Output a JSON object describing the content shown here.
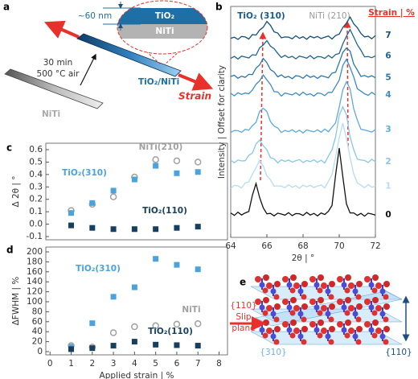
{
  "panel_labels": [
    "a",
    "b",
    "c",
    "d",
    "e"
  ],
  "panel_a": {
    "thickness": "~60 nm",
    "top_layer": "TiO₂",
    "bottom_layer": "NiTi",
    "anneal_time": "30 min",
    "anneal_condition": "500 °C air",
    "substrate_label": "NiTi",
    "sample_label": "TiO₂/NiTi",
    "strain_label": "Strain"
  },
  "panel_e": {
    "slip_plane_index": "{110}",
    "slip_label": "Slip",
    "plane_label": "plane",
    "plane_310": "{310}",
    "plane_110": "{110}"
  },
  "chart_data": [
    {
      "type": "line",
      "xlabel": "2θ | °",
      "ylabel": "Intensity | Offset for clarity",
      "legend_title": "Strain | %",
      "annotations": [
        "TiO₂ (310)",
        "NiTi (210)"
      ],
      "xlim": [
        64,
        72
      ],
      "xticks": [
        64,
        66,
        68,
        70,
        72
      ],
      "ylim": [
        0,
        10
      ],
      "x": [
        64,
        64.2,
        64.4,
        64.6,
        64.8,
        65,
        65.2,
        65.4,
        65.6,
        65.8,
        66,
        66.2,
        66.4,
        66.6,
        66.8,
        67,
        67.2,
        67.4,
        67.6,
        67.8,
        68,
        68.2,
        68.4,
        68.6,
        68.8,
        69,
        69.2,
        69.4,
        69.6,
        69.8,
        70,
        70.2,
        70.4,
        70.6,
        70.8,
        71,
        71.2,
        71.4,
        71.6,
        71.8,
        72
      ],
      "series": [
        {
          "name": "0",
          "color": "#111111",
          "values": [
            1.06,
            0.95,
            1.09,
            0.97,
            1.06,
            1.12,
            1.83,
            2.33,
            1.72,
            1.28,
            1.02,
            1.04,
            0.93,
            1.05,
            1.01,
            0.96,
            1.07,
            0.94,
            1.03,
            1.02,
            0.95,
            1.08,
            0.97,
            1.04,
            0.93,
            1.06,
            0.99,
            1.13,
            1.38,
            2.7,
            3.87,
            2.62,
            1.45,
            1.06,
            1.06,
            0.95,
            1.04,
            0.92,
            1.05,
            1.01,
            0.97
          ]
        },
        {
          "name": "1",
          "color": "#b5dcf3",
          "values": [
            2.12,
            2.25,
            2.23,
            2.14,
            2.36,
            2.4,
            2.74,
            3.01,
            3.35,
            3.09,
            2.66,
            2.49,
            2.22,
            2.23,
            2.22,
            2.15,
            2.28,
            2.17,
            2.24,
            2.13,
            2.26,
            2.19,
            2.25,
            2.16,
            2.22,
            2.27,
            2.14,
            2.42,
            2.72,
            3.48,
            4.31,
            4.94,
            4.28,
            3.47,
            2.75,
            2.36,
            2.26,
            2.15,
            2.29,
            2.17,
            2.22
          ]
        },
        {
          "name": "2",
          "color": "#86c6ea",
          "values": [
            3.34,
            3.23,
            3.35,
            3.31,
            3.32,
            3.55,
            3.65,
            4.05,
            4.22,
            3.97,
            3.79,
            3.45,
            3.4,
            3.23,
            3.36,
            3.29,
            3.35,
            3.26,
            3.32,
            3.37,
            3.24,
            3.33,
            3.28,
            3.36,
            3.25,
            3.34,
            3.22,
            3.52,
            3.79,
            4.35,
            5.28,
            5.65,
            5.31,
            4.35,
            3.8,
            3.39,
            3.35,
            3.33,
            3.24,
            3.38,
            3.28
          ]
        },
        {
          "name": "3",
          "color": "#5eaad8",
          "values": [
            4.54,
            4.63,
            4.62,
            4.55,
            4.68,
            4.64,
            4.84,
            4.98,
            5.46,
            5.59,
            5.45,
            5.01,
            4.82,
            4.74,
            4.54,
            4.63,
            4.58,
            4.66,
            4.55,
            4.64,
            4.52,
            4.65,
            4.61,
            4.57,
            4.66,
            4.55,
            4.69,
            4.57,
            4.77,
            4.96,
            5.64,
            6.39,
            6.74,
            6.44,
            5.57,
            5.08,
            4.68,
            4.65,
            4.61,
            4.56,
            4.67
          ]
        },
        {
          "name": "4",
          "color": "#3d8cc2",
          "values": [
            6.24,
            6.13,
            6.26,
            6.19,
            6.25,
            6.22,
            6.38,
            6.63,
            6.78,
            7.03,
            6.82,
            6.62,
            6.31,
            6.3,
            6.12,
            6.25,
            6.21,
            6.17,
            6.26,
            6.15,
            6.29,
            6.17,
            6.22,
            6.12,
            6.25,
            6.23,
            6.14,
            6.28,
            6.28,
            6.54,
            6.81,
            7.45,
            7.71,
            7.36,
            6.95,
            6.44,
            6.33,
            6.22,
            6.15,
            6.28,
            6.17
          ]
        },
        {
          "name": "5",
          "color": "#2a76aa",
          "values": [
            6.97,
            7.02,
            6.89,
            6.98,
            6.93,
            7.06,
            7.05,
            7.33,
            7.47,
            7.75,
            7.56,
            7.26,
            7.16,
            6.95,
            7.04,
            6.92,
            6.97,
            6.87,
            7,
            6.98,
            6.89,
            7.03,
            6.93,
            6.99,
            6.88,
            7,
            6.96,
            6.91,
            7.11,
            7.15,
            7.57,
            8.01,
            8.2,
            8.07,
            7.51,
            7.25,
            6.97,
            7.01,
            6.94,
            7,
            6.91
          ]
        },
        {
          "name": "6",
          "color": "#1d6393",
          "values": [
            7.75,
            7.84,
            7.72,
            7.85,
            7.81,
            7.77,
            7.91,
            7.89,
            8.21,
            8.33,
            8.52,
            8.28,
            8.17,
            7.97,
            7.79,
            7.88,
            7.78,
            7.84,
            7.73,
            7.85,
            7.81,
            7.76,
            7.87,
            7.74,
            7.83,
            7.82,
            7.75,
            7.88,
            7.77,
            7.92,
            7.96,
            8.38,
            8.71,
            9,
            8.68,
            8.34,
            8.1,
            7.82,
            7.83,
            7.78,
            7.86
          ]
        },
        {
          "name": "7",
          "color": "#124e78",
          "values": [
            8.62,
            8.67,
            8.57,
            8.7,
            8.68,
            8.59,
            8.78,
            8.76,
            8.98,
            9.1,
            9.35,
            9.18,
            8.9,
            8.85,
            8.64,
            8.68,
            8.67,
            8.6,
            8.73,
            8.62,
            8.69,
            8.58,
            8.71,
            8.64,
            8.7,
            8.61,
            8.67,
            8.72,
            8.59,
            8.74,
            8.8,
            9.09,
            9.28,
            9.54,
            9.25,
            9.08,
            8.83,
            8.68,
            8.71,
            8.6,
            8.74
          ]
        }
      ]
    },
    {
      "type": "scatter",
      "ylabel": "Δ 2θ | °",
      "xlim": [
        -0.2,
        8.4
      ],
      "ylim": [
        -0.1,
        0.6
      ],
      "yticks": [
        -0.1,
        {
          "value": 0,
          "label": "0.0"
        },
        0.1,
        0.2,
        0.3,
        0.4,
        0.5,
        0.6
      ],
      "x": [
        1,
        2,
        3,
        4,
        5,
        6,
        7
      ],
      "series": [
        {
          "name": "NiTi(210)",
          "color": "#a0a0a0",
          "marker": "circle-open",
          "values": [
            0.11,
            0.16,
            0.22,
            0.38,
            0.52,
            0.51,
            0.5
          ]
        },
        {
          "name": "TiO₂(310)",
          "color": "#4aa3dd",
          "marker": "square",
          "values": [
            0.09,
            0.17,
            0.27,
            0.36,
            0.47,
            0.41,
            0.42
          ]
        },
        {
          "name": "TiO₂(110)",
          "color": "#173f5f",
          "marker": "square",
          "values": [
            -0.01,
            -0.03,
            -0.04,
            -0.04,
            -0.04,
            -0.03,
            -0.02
          ]
        }
      ]
    },
    {
      "type": "scatter",
      "xlabel": "Applied strain | %",
      "ylabel": "ΔFWHM | %",
      "xlim": [
        -0.2,
        8.4
      ],
      "ylim": [
        0,
        200
      ],
      "xticks": [
        0,
        1,
        2,
        3,
        4,
        5,
        6,
        7,
        8
      ],
      "yticks": [
        0,
        20,
        40,
        60,
        80,
        100,
        120,
        140,
        160,
        180,
        200
      ],
      "x": [
        1,
        2,
        3,
        4,
        5,
        6,
        7
      ],
      "series": [
        {
          "name": "TiO₂(310)",
          "color": "#4aa3dd",
          "marker": "square",
          "values": [
            10,
            57,
            110,
            129,
            186,
            174,
            165
          ]
        },
        {
          "name": "NiTi",
          "color": "#a0a0a0",
          "marker": "circle-open",
          "values": [
            12,
            9,
            38,
            50,
            52,
            55,
            56
          ]
        },
        {
          "name": "TiO₂(110)",
          "color": "#173f5f",
          "marker": "square",
          "values": [
            5,
            7,
            12,
            20,
            14,
            13,
            12
          ]
        }
      ]
    }
  ]
}
